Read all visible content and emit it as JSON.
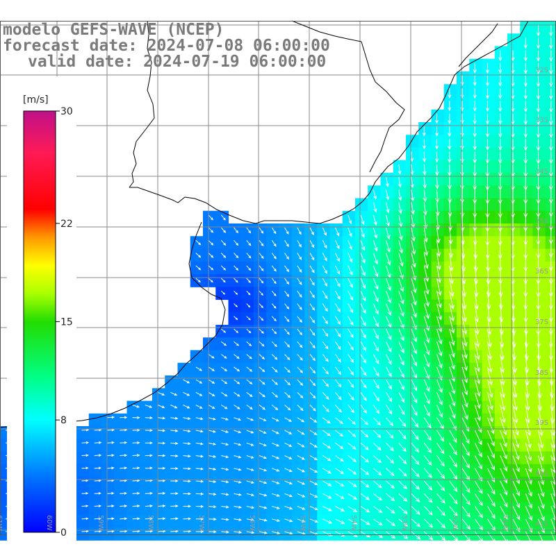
{
  "header": {
    "line1": "modelo GEFS-WAVE (NCEP)",
    "line2": "forecast date: 2024-07-08 06:00:00",
    "line3": "valid date: 2024-07-19 06:00:00"
  },
  "colorbar": {
    "unit": "[m/s]",
    "min": 0,
    "max": 30,
    "ticks": [
      {
        "value": 30,
        "label": "30"
      },
      {
        "value": 22,
        "label": "22"
      },
      {
        "value": 15,
        "label": "15"
      },
      {
        "value": 8,
        "label": "8"
      },
      {
        "value": 0,
        "label": "0"
      }
    ],
    "stops": [
      {
        "value": 0,
        "color": "#0000ff"
      },
      {
        "value": 4,
        "color": "#0077ff"
      },
      {
        "value": 8,
        "color": "#00ffff"
      },
      {
        "value": 11,
        "color": "#00ff88"
      },
      {
        "value": 15,
        "color": "#22dd00"
      },
      {
        "value": 17,
        "color": "#aaff00"
      },
      {
        "value": 19,
        "color": "#ffff00"
      },
      {
        "value": 21,
        "color": "#ff9900"
      },
      {
        "value": 23,
        "color": "#ff0000"
      },
      {
        "value": 27,
        "color": "#ff1a55"
      },
      {
        "value": 30,
        "color": "#c0108a"
      }
    ]
  },
  "grid": {
    "lat_labels": [
      "32S",
      "33S",
      "34S",
      "35S",
      "36S",
      "37S",
      "38S",
      "39S",
      "40S",
      "41S"
    ],
    "lon_labels": [
      "61W",
      "60W",
      "59W",
      "58W",
      "57W",
      "56W",
      "55W",
      "54W",
      "53W",
      "52W",
      "51W"
    ]
  },
  "colors": {
    "land": "#ffffff",
    "coast": "#000000",
    "grid": "#888888",
    "arrows": "#ffffff"
  }
}
